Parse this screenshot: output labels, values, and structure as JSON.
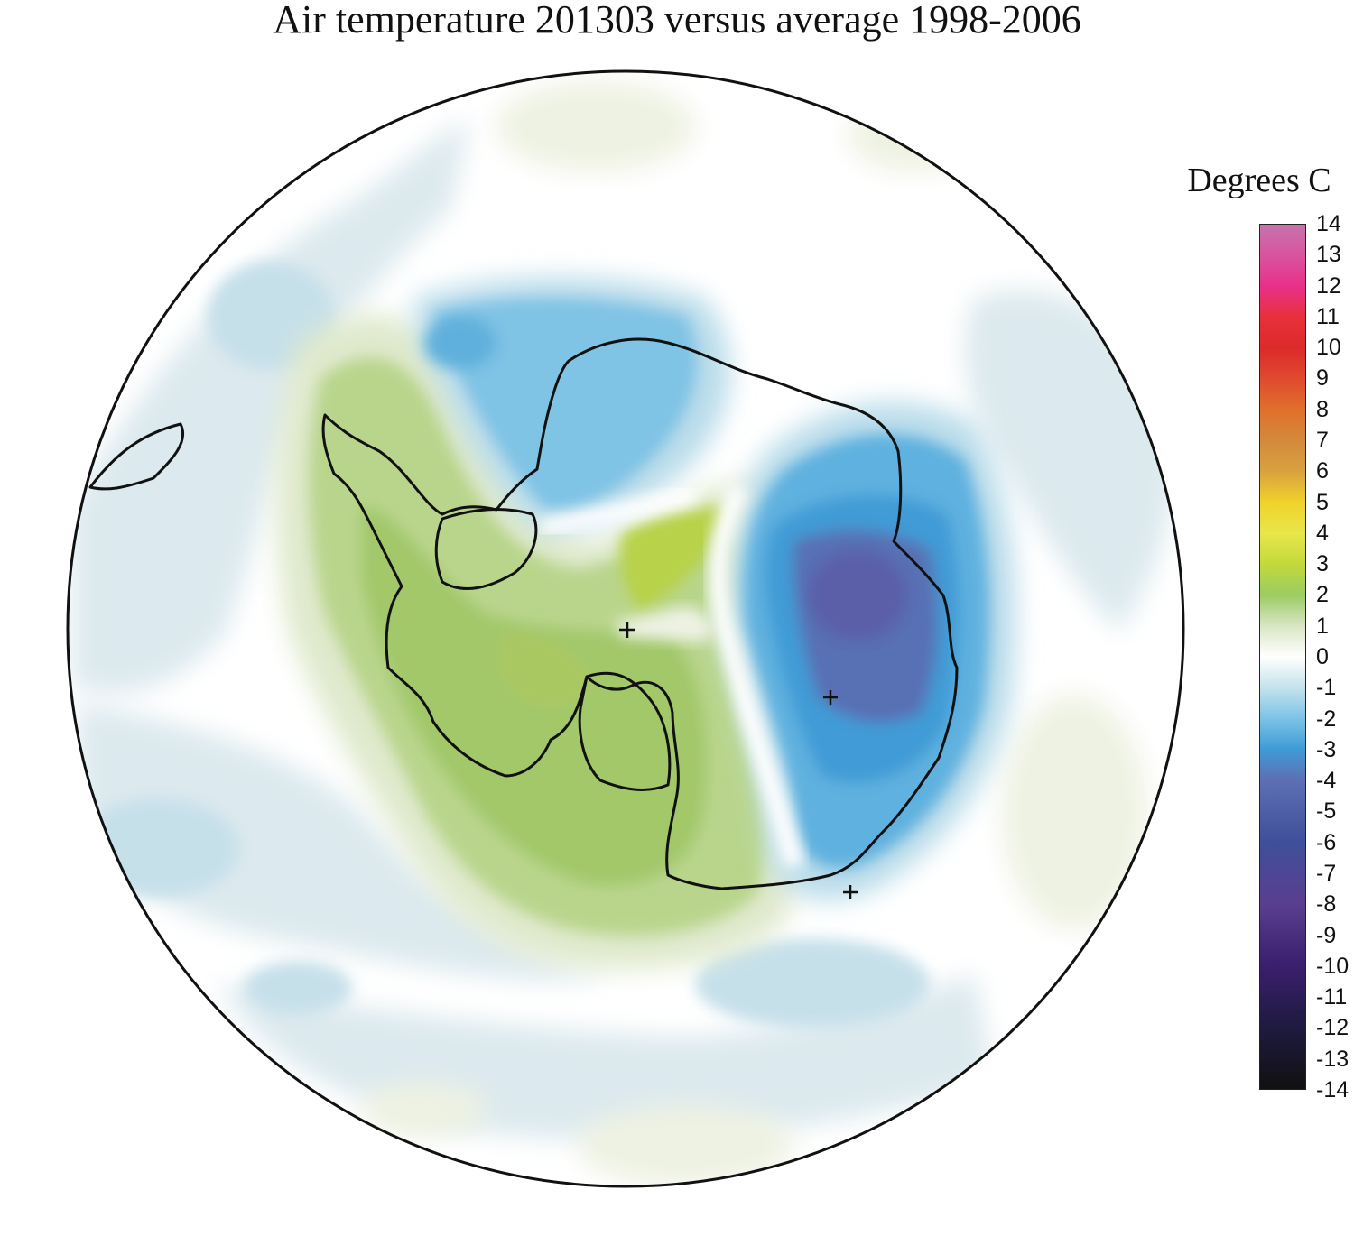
{
  "title": "Air temperature 201303 versus average 1998-2006",
  "legend": {
    "title": "Degrees C",
    "ticks": [
      "14",
      "13",
      "12",
      "11",
      "10",
      "9",
      "8",
      "7",
      "6",
      "5",
      "4",
      "3",
      "2",
      "1",
      "0",
      "-1",
      "-2",
      "-3",
      "-4",
      "-5",
      "-6",
      "-7",
      "-8",
      "-9",
      "-10",
      "-11",
      "-12",
      "-13",
      "-14"
    ],
    "range": [
      -14,
      14
    ],
    "colors": {
      "-14": "#111111",
      "-12": "#1e1a40",
      "-10": "#3b1f6e",
      "-8": "#5a3e8f",
      "-6": "#3f4f9a",
      "-4": "#5d6fb4",
      "-3": "#3e9bd6",
      "-2": "#7cc3e6",
      "-1": "#c4e2ec",
      "0": "#ffffff",
      "1": "#d8e6c4",
      "2": "#9ccc62",
      "3": "#c2d93a",
      "4": "#e8e64a",
      "5": "#f1d22a",
      "6": "#d8a23e",
      "7": "#d48a3c",
      "8": "#e0702a",
      "9": "#e04a30",
      "10": "#dc2a2a",
      "11": "#e8303a",
      "12": "#e8308a",
      "13": "#d8549e",
      "14": "#c872ae"
    }
  },
  "map": {
    "projection": "south-polar-stereographic",
    "markers": [
      "+",
      "+",
      "+"
    ]
  }
}
